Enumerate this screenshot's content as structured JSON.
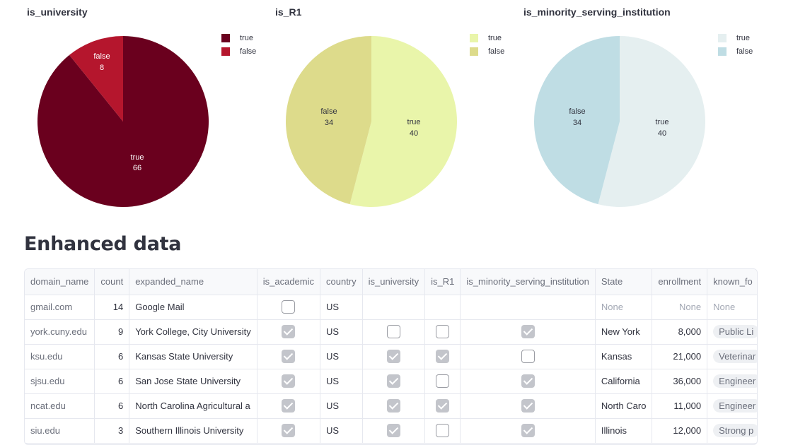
{
  "charts": [
    {
      "title": "is_university",
      "legend": [
        {
          "label": "true",
          "color": "#6a001e"
        },
        {
          "label": "false",
          "color": "#b5162d"
        }
      ],
      "slice_labels": [
        {
          "name": "false",
          "value": "8"
        },
        {
          "name": "true",
          "value": "66"
        }
      ]
    },
    {
      "title": "is_R1",
      "legend": [
        {
          "label": "true",
          "color": "#e9f5aa"
        },
        {
          "label": "false",
          "color": "#dddb8b"
        }
      ],
      "slice_labels": [
        {
          "name": "false",
          "value": "34"
        },
        {
          "name": "true",
          "value": "40"
        }
      ]
    },
    {
      "title": "is_minority_serving_institution",
      "legend": [
        {
          "label": "true",
          "color": "#e5eff0"
        },
        {
          "label": "false",
          "color": "#bfdde4"
        }
      ],
      "slice_labels": [
        {
          "name": "false",
          "value": "34"
        },
        {
          "name": "true",
          "value": "40"
        }
      ]
    }
  ],
  "chart_data": [
    {
      "type": "pie",
      "title": "is_university",
      "categories": [
        "true",
        "false"
      ],
      "values": [
        66,
        8
      ],
      "colors": [
        "#6a001e",
        "#b5162d"
      ],
      "legend": "top-right"
    },
    {
      "type": "pie",
      "title": "is_R1",
      "categories": [
        "true",
        "false"
      ],
      "values": [
        40,
        34
      ],
      "colors": [
        "#e9f5aa",
        "#dddb8b"
      ],
      "legend": "top-right"
    },
    {
      "type": "pie",
      "title": "is_minority_serving_institution",
      "categories": [
        "true",
        "false"
      ],
      "values": [
        40,
        34
      ],
      "colors": [
        "#e5eff0",
        "#bfdde4"
      ],
      "legend": "top-right"
    }
  ],
  "section": {
    "title": "Enhanced data"
  },
  "table": {
    "columns": [
      "domain_name",
      "count",
      "expanded_name",
      "is_academic",
      "country",
      "is_university",
      "is_R1",
      "is_minority_serving_institution",
      "State",
      "enrollment",
      "known_fo"
    ],
    "rows": [
      {
        "domain": "gmail.com",
        "count": "14",
        "name": "Google Mail",
        "academic": false,
        "country": "US",
        "university": null,
        "r1": null,
        "msi": null,
        "state": "None",
        "enrollment": "None",
        "known": "None"
      },
      {
        "domain": "york.cuny.edu",
        "count": "9",
        "name": "York College, City University",
        "academic": true,
        "country": "US",
        "university": false,
        "r1": false,
        "msi": true,
        "state": "New York",
        "enrollment": "8,000",
        "known": "Public Li"
      },
      {
        "domain": "ksu.edu",
        "count": "6",
        "name": "Kansas State University",
        "academic": true,
        "country": "US",
        "university": true,
        "r1": true,
        "msi": false,
        "state": "Kansas",
        "enrollment": "21,000",
        "known": "Veterinar"
      },
      {
        "domain": "sjsu.edu",
        "count": "6",
        "name": "San Jose State University",
        "academic": true,
        "country": "US",
        "university": true,
        "r1": false,
        "msi": true,
        "state": "California",
        "enrollment": "36,000",
        "known": "Engineer"
      },
      {
        "domain": "ncat.edu",
        "count": "6",
        "name": "North Carolina Agricultural a",
        "academic": true,
        "country": "US",
        "university": true,
        "r1": true,
        "msi": true,
        "state": "North Caro",
        "enrollment": "11,000",
        "known": "Engineer"
      },
      {
        "domain": "siu.edu",
        "count": "3",
        "name": "Southern Illinois University",
        "academic": true,
        "country": "US",
        "university": true,
        "r1": false,
        "msi": true,
        "state": "Illinois",
        "enrollment": "12,000",
        "known": "Strong p"
      }
    ]
  }
}
